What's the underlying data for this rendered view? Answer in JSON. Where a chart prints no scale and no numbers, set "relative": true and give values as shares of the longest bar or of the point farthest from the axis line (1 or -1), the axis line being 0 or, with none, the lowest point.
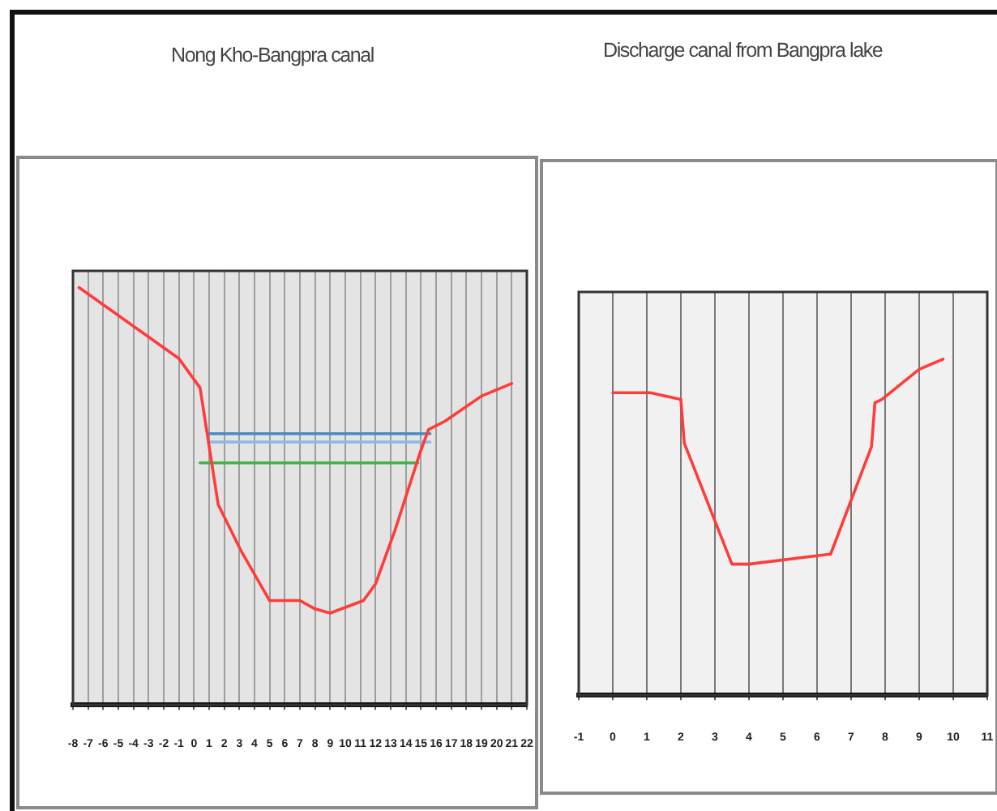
{
  "chart_data": [
    {
      "type": "line",
      "title": "Nong Kho-Bangpra canal",
      "relative": true,
      "grid": "x",
      "xlim": [
        -8,
        22
      ],
      "xticks": [
        -8,
        -7,
        -6,
        -5,
        -4,
        -3,
        -2,
        -1,
        0,
        1,
        2,
        3,
        4,
        5,
        6,
        7,
        8,
        9,
        10,
        11,
        12,
        13,
        14,
        15,
        16,
        17,
        18,
        19,
        20,
        21,
        22
      ],
      "series": [
        {
          "color": "#ff3b3b",
          "x": [
            -7.6,
            -1,
            0.4,
            1.6,
            3.1,
            5,
            7,
            8,
            9,
            11.2,
            12,
            13.3,
            14.9,
            15.5,
            16.6,
            19,
            21
          ],
          "values": [
            1,
            0.83,
            0.76,
            0.48,
            0.37,
            0.25,
            0.25,
            0.23,
            0.22,
            0.25,
            0.29,
            0.42,
            0.6,
            0.66,
            0.68,
            0.74,
            0.77
          ]
        },
        {
          "color": "#4f88c6",
          "x": [
            1,
            15.6
          ],
          "values": [
            0.65,
            0.65
          ]
        },
        {
          "color": "#8db8e6",
          "x": [
            1,
            15.6
          ],
          "values": [
            0.63,
            0.63
          ]
        },
        {
          "color": "#3cb44b",
          "x": [
            0.4,
            14.8
          ],
          "values": [
            0.58,
            0.58
          ]
        }
      ]
    },
    {
      "type": "line",
      "title": "Discharge canal from Bangpra lake",
      "relative": true,
      "grid": "x",
      "xlim": [
        -1,
        11
      ],
      "xticks": [
        -1,
        0,
        1,
        2,
        3,
        4,
        5,
        6,
        7,
        8,
        9,
        10,
        11
      ],
      "series": [
        {
          "color": "#ff3b3b",
          "x": [
            0,
            1.1,
            2,
            2.1,
            3.5,
            4,
            6.4,
            7.6,
            7.7,
            7.9,
            9,
            9.7
          ],
          "values": [
            0.9,
            0.9,
            0.88,
            0.75,
            0.39,
            0.39,
            0.42,
            0.74,
            0.87,
            0.88,
            0.97,
            1
          ]
        }
      ]
    }
  ]
}
